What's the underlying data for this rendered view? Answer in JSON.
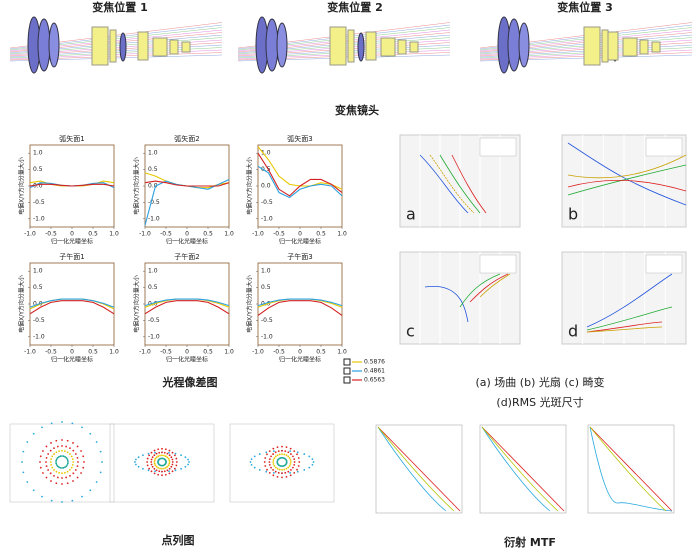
{
  "zoom_titles": [
    "变焦位置 1",
    "变焦位置 2",
    "变焦位置 3"
  ],
  "lens_caption": "变焦镜头",
  "opd_caption": "光程像差图",
  "aberration_caption_1": "(a) 场曲 (b) 光扇 (c) 畸变",
  "aberration_caption_2": "(d)RMS 光斑尺寸",
  "panel_letters": [
    "a",
    "b",
    "c",
    "d"
  ],
  "spot_caption": "点列图",
  "mtf_caption": "衍射 MTF",
  "chart_data": [
    {
      "type": "line",
      "title": "弧矢面1",
      "x_label": "归一化光瞳坐标",
      "y_label": "电偏X/Y方向分量大小",
      "x": [
        -1,
        -0.75,
        -0.5,
        -0.25,
        0,
        0.25,
        0.5,
        0.75,
        1
      ],
      "series": [
        {
          "name": "0.5876",
          "color": "#e8c800",
          "values": [
            0.1,
            0.15,
            0.05,
            0,
            0,
            0,
            0.05,
            0.15,
            0.1
          ]
        },
        {
          "name": "0.4861",
          "color": "#2aa0e0",
          "values": [
            -0.05,
            0.1,
            0.08,
            0.02,
            0,
            0.02,
            0.08,
            0.1,
            -0.05
          ]
        },
        {
          "name": "0.6563",
          "color": "#d42020",
          "values": [
            0,
            0.05,
            0.05,
            0.02,
            0,
            0.02,
            0.05,
            0.05,
            0
          ]
        }
      ],
      "xlim": [
        -1,
        1
      ],
      "ylim": [
        -1.25,
        1.25
      ],
      "xticks": [
        {
          "value": -1,
          "label": "-1.0"
        },
        -0.5,
        0,
        0.5,
        {
          "value": 1,
          "label": "1.0"
        }
      ],
      "yticks": [
        {
          "value": -1,
          "label": "-1.0"
        },
        -0.5,
        {
          "value": 0,
          "label": "0.0"
        },
        0.5,
        {
          "value": 1,
          "label": "1.0"
        }
      ]
    },
    {
      "type": "line",
      "title": "弧矢面2",
      "x_label": "归一化光瞳坐标",
      "y_label": "电偏X/Y方向分量大小",
      "x": [
        -1,
        -0.75,
        -0.5,
        -0.25,
        0,
        0.25,
        0.5,
        0.75,
        1
      ],
      "series": [
        {
          "name": "0.5876",
          "color": "#e8c800",
          "values": [
            0.4,
            0.3,
            0.15,
            0.05,
            0,
            -0.05,
            -0.05,
            0.05,
            0.1
          ]
        },
        {
          "name": "0.4861",
          "color": "#2aa0e0",
          "values": [
            -1.2,
            0,
            0.15,
            0.05,
            0,
            -0.05,
            -0.1,
            0.05,
            0.2
          ]
        },
        {
          "name": "0.6563",
          "color": "#d42020",
          "values": [
            0.1,
            0.15,
            0.1,
            0.03,
            0,
            0,
            0,
            0,
            0.1
          ]
        }
      ],
      "xlim": [
        -1,
        1
      ],
      "ylim": [
        -1.25,
        1.25
      ],
      "xticks": [
        {
          "value": -1,
          "label": "-1.0"
        },
        -0.5,
        0,
        0.5,
        {
          "value": 1,
          "label": "1.0"
        }
      ],
      "yticks": [
        {
          "value": -1,
          "label": "-1.0"
        },
        -0.5,
        {
          "value": 0,
          "label": "0.0"
        },
        0.5,
        {
          "value": 1,
          "label": "1.0"
        }
      ]
    },
    {
      "type": "line",
      "title": "弧矢面3",
      "x_label": "归一化光瞳坐标",
      "y_label": "电偏X/Y方向分量大小",
      "x": [
        -1,
        -0.75,
        -0.5,
        -0.25,
        0,
        0.25,
        0.5,
        0.75,
        1
      ],
      "series": [
        {
          "name": "0.5876",
          "color": "#e8c800",
          "values": [
            1.2,
            0.8,
            0.3,
            0.05,
            0,
            0,
            0.1,
            0.05,
            -0.1
          ]
        },
        {
          "name": "0.4861",
          "color": "#2aa0e0",
          "values": [
            0.6,
            0.4,
            -0.2,
            -0.35,
            -0.1,
            0,
            0.05,
            0,
            -0.3
          ]
        },
        {
          "name": "0.6563",
          "color": "#d42020",
          "values": [
            1,
            0.5,
            -0.1,
            -0.3,
            0,
            0.2,
            0.2,
            0.05,
            -0.2
          ]
        }
      ],
      "xlim": [
        -1,
        1
      ],
      "ylim": [
        -1.25,
        1.25
      ],
      "xticks": [
        {
          "value": -1,
          "label": "-1.0"
        },
        -0.5,
        0,
        0.5,
        {
          "value": 1,
          "label": "1.0"
        }
      ],
      "yticks": [
        {
          "value": -1,
          "label": "-1.0"
        },
        -0.5,
        {
          "value": 0,
          "label": "0.0"
        },
        0.5,
        {
          "value": 1,
          "label": "1.0"
        }
      ]
    },
    {
      "type": "line",
      "title": "子午面1",
      "x_label": "归一化光瞳坐标",
      "y_label": "电偏X/Y方向分量大小",
      "x": [
        -1,
        -0.75,
        -0.5,
        -0.25,
        0,
        0.25,
        0.5,
        0.75,
        1
      ],
      "series": [
        {
          "name": "0.5876",
          "color": "#e8c800",
          "values": [
            -0.15,
            0,
            0.1,
            0.15,
            0.15,
            0.15,
            0.1,
            0,
            -0.15
          ]
        },
        {
          "name": "0.4861",
          "color": "#2aa0e0",
          "values": [
            -0.1,
            0.02,
            0.1,
            0.15,
            0.15,
            0.15,
            0.1,
            0.02,
            -0.1
          ]
        },
        {
          "name": "0.6563",
          "color": "#d42020",
          "values": [
            -0.3,
            -0.1,
            0.05,
            0.1,
            0.1,
            0.1,
            0.05,
            -0.1,
            -0.3
          ]
        }
      ],
      "xlim": [
        -1,
        1
      ],
      "ylim": [
        -1.25,
        1.25
      ],
      "xticks": [
        {
          "value": -1,
          "label": "-1.0"
        },
        -0.5,
        0,
        0.5,
        {
          "value": 1,
          "label": "1.0"
        }
      ],
      "yticks": [
        {
          "value": -1,
          "label": "-1.0"
        },
        -0.5,
        {
          "value": 0,
          "label": "0.0"
        },
        0.5,
        {
          "value": 1,
          "label": "1.0"
        }
      ]
    },
    {
      "type": "line",
      "title": "子午面2",
      "x_label": "归一化光瞳坐标",
      "y_label": "电偏X/Y方向分量大小",
      "x": [
        -1,
        -0.75,
        -0.5,
        -0.25,
        0,
        0.25,
        0.5,
        0.75,
        1
      ],
      "series": [
        {
          "name": "0.5876",
          "color": "#e8c800",
          "values": [
            -0.1,
            0.02,
            0.1,
            0.15,
            0.15,
            0.15,
            0.1,
            0.02,
            -0.1
          ]
        },
        {
          "name": "0.4861",
          "color": "#2aa0e0",
          "values": [
            -0.05,
            0.05,
            0.12,
            0.15,
            0.15,
            0.15,
            0.12,
            0.05,
            -0.05
          ]
        },
        {
          "name": "0.6563",
          "color": "#d42020",
          "values": [
            -0.3,
            -0.1,
            0.05,
            0.1,
            0.1,
            0.1,
            0.05,
            -0.1,
            -0.3
          ]
        }
      ],
      "xlim": [
        -1,
        1
      ],
      "ylim": [
        -1.25,
        1.25
      ],
      "xticks": [
        {
          "value": -1,
          "label": "-1.0"
        },
        -0.5,
        0,
        0.5,
        {
          "value": 1,
          "label": "1.0"
        }
      ],
      "yticks": [
        {
          "value": -1,
          "label": "-1.0"
        },
        -0.5,
        {
          "value": 0,
          "label": "0.0"
        },
        0.5,
        {
          "value": 1,
          "label": "1.0"
        }
      ]
    },
    {
      "type": "line",
      "title": "子午面3",
      "x_label": "归一化光瞳坐标",
      "y_label": "电偏X/Y方向分量大小",
      "x": [
        -1,
        -0.75,
        -0.5,
        -0.25,
        0,
        0.25,
        0.5,
        0.75,
        1
      ],
      "series": [
        {
          "name": "0.5876",
          "color": "#e8c800",
          "values": [
            -0.1,
            0.02,
            0.1,
            0.15,
            0.15,
            0.15,
            0.1,
            0.02,
            -0.1
          ]
        },
        {
          "name": "0.4861",
          "color": "#2aa0e0",
          "values": [
            -0.05,
            0.05,
            0.12,
            0.15,
            0.15,
            0.15,
            0.12,
            0.05,
            -0.05
          ]
        },
        {
          "name": "0.6563",
          "color": "#d42020",
          "values": [
            -0.35,
            -0.12,
            0.05,
            0.1,
            0.1,
            0.1,
            0.05,
            -0.12,
            -0.35
          ]
        }
      ],
      "xlim": [
        -1,
        1
      ],
      "ylim": [
        -1.25,
        1.25
      ],
      "xticks": [
        {
          "value": -1,
          "label": "-1.0"
        },
        -0.5,
        0,
        0.5,
        {
          "value": 1,
          "label": "1.0"
        }
      ],
      "yticks": [
        {
          "value": -1,
          "label": "-1.0"
        },
        -0.5,
        {
          "value": 0,
          "label": "0.0"
        },
        0.5,
        {
          "value": 1,
          "label": "1.0"
        }
      ]
    }
  ]
}
